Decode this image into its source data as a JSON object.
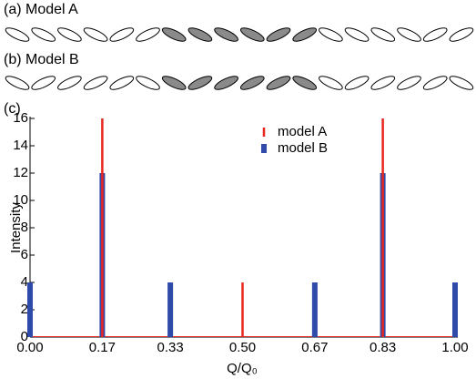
{
  "panel_a": {
    "label": "(a) Model A"
  },
  "panel_b": {
    "label": "(b) Model B"
  },
  "chart_data": {
    "type": "bar",
    "panel_label": "(c)",
    "x_label": "Q/Q₀",
    "y_label": "Intensity",
    "xlim": [
      0,
      1
    ],
    "ylim": [
      0,
      16
    ],
    "xticks": [
      {
        "value": 0,
        "label": "0.00"
      },
      0.17,
      0.33,
      {
        "value": 0.5,
        "label": "0.50"
      },
      0.67,
      0.83,
      {
        "value": 1,
        "label": "1.00"
      }
    ],
    "yticks": [
      0,
      2,
      4,
      6,
      8,
      10,
      12,
      14,
      16
    ],
    "legend": "upper center",
    "series": [
      {
        "name": "model A",
        "color": "#e8261f",
        "x": [
          0.17,
          0.5,
          0.83
        ],
        "values": [
          16,
          4,
          16
        ]
      },
      {
        "name": "model B",
        "color": "#2f4aa8",
        "x": [
          0,
          0.17,
          0.33,
          0.67,
          0.83,
          1
        ],
        "values": [
          4,
          12,
          4,
          4,
          12,
          4
        ]
      }
    ]
  }
}
